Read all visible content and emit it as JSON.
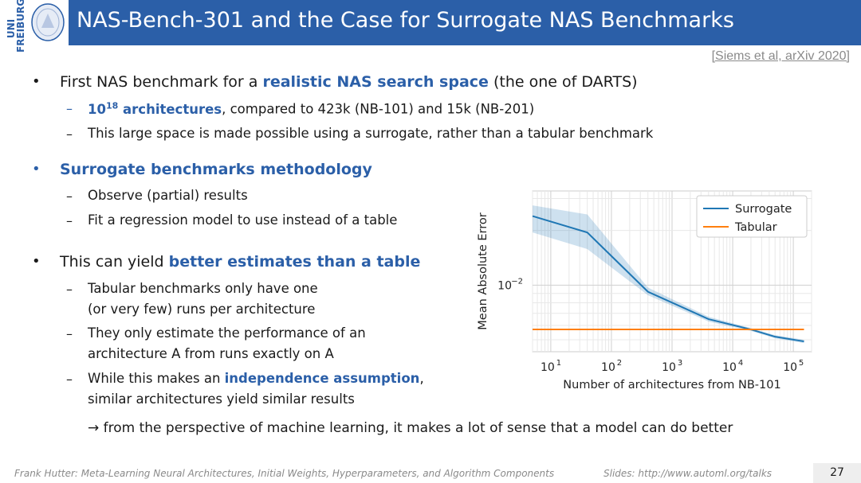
{
  "header": {
    "logo_text": "UNI FREIBURG",
    "title": "NAS-Bench-301 and the Case for Surrogate NAS Benchmarks"
  },
  "citation": "[Siems et al, arXiv 2020]",
  "bullets": {
    "b1": {
      "pre": "First NAS benchmark for a ",
      "highlight": "realistic NAS search space",
      "post": " (the one of DARTS)",
      "sub1": {
        "highlight_base": "10",
        "highlight_exp": "18",
        "highlight_rest": " architectures",
        "post": ", compared to 423k (NB-101) and 15k (NB-201)"
      },
      "sub2": "This large space is made possible using a surrogate, rather than a tabular benchmark"
    },
    "b2": {
      "title": "Surrogate benchmarks methodology",
      "sub1": "Observe (partial) results",
      "sub2": "Fit a regression model to use instead of a table"
    },
    "b3": {
      "pre": "This can yield ",
      "highlight": "better estimates than a table",
      "sub1_l1": "Tabular benchmarks only have one",
      "sub1_l2": "(or very few) runs per architecture",
      "sub2_l1": "They only estimate the performance of an",
      "sub2_l2": "architecture A from runs exactly on A",
      "sub3_pre": "While this makes an ",
      "sub3_highlight": "independence assumption",
      "sub3_post": ",",
      "sub3_l2": "similar architectures yield similar results"
    },
    "conclusion": "→ from the perspective of machine learning, it makes a lot of sense that a model can do better"
  },
  "bullet_symbol": "•",
  "dash_symbol": "–",
  "footer": {
    "left": "Frank Hutter: Meta-Learning Neural Architectures, Initial Weights, Hyperparameters, and Algorithm Components",
    "right": "Slides: http://www.automl.org/talks",
    "page": "27"
  },
  "chart_data": {
    "type": "line",
    "xlabel": "Number of architectures from NB-101",
    "ylabel": "Mean Absolute Error",
    "x_scale": "log",
    "y_scale": "log",
    "xlim": [
      5,
      200000
    ],
    "ylim": [
      0.0043,
      0.033
    ],
    "x_ticks": [
      {
        "value": 10,
        "base": "10",
        "exp": "1"
      },
      {
        "value": 100,
        "base": "10",
        "exp": "2"
      },
      {
        "value": 1000,
        "base": "10",
        "exp": "3"
      },
      {
        "value": 10000,
        "base": "10",
        "exp": "4"
      },
      {
        "value": 100000,
        "base": "10",
        "exp": "5"
      }
    ],
    "y_ticks": [
      {
        "value": 0.01,
        "base": "10",
        "exp": "−2"
      }
    ],
    "grid": true,
    "legend_position": "top-right",
    "colors": {
      "Surrogate": "#1f77b4",
      "Tabular": "#ff7f0e"
    },
    "series": [
      {
        "name": "Surrogate",
        "x": [
          5,
          40,
          400,
          4000,
          20000,
          50000,
          150000
        ],
        "y": [
          0.024,
          0.0195,
          0.0092,
          0.0065,
          0.0057,
          0.0052,
          0.0049
        ],
        "y_low": [
          0.0195,
          0.0158,
          0.0088,
          0.0063,
          0.0056,
          0.0051,
          0.0048
        ],
        "y_high": [
          0.0275,
          0.0245,
          0.0097,
          0.0067,
          0.0058,
          0.0053,
          0.005
        ]
      },
      {
        "name": "Tabular",
        "x": [
          5,
          150000
        ],
        "y": [
          0.0057,
          0.0057
        ]
      }
    ]
  }
}
